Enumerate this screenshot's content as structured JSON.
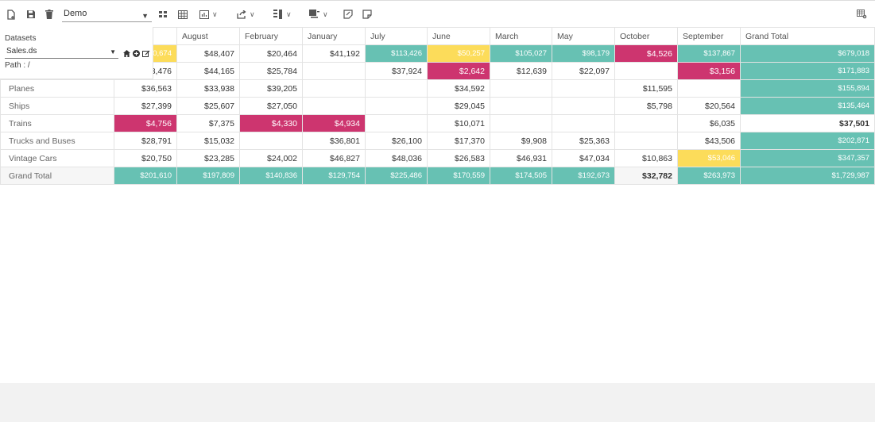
{
  "toolbar": {
    "report_name": "Demo",
    "items": [
      {
        "name": "new-report-icon"
      },
      {
        "name": "save-icon"
      },
      {
        "name": "delete-icon"
      },
      {
        "name": "grid-layout-icon"
      },
      {
        "name": "table-view-icon"
      },
      {
        "name": "chart-view-icon"
      },
      {
        "name": "export-icon"
      },
      {
        "name": "fields-icon"
      },
      {
        "name": "format-icon"
      },
      {
        "name": "edit-note-icon"
      },
      {
        "name": "note-icon"
      },
      {
        "name": "settings-grid-icon"
      }
    ]
  },
  "datasets": {
    "title": "Datasets",
    "selected": "Sales.ds",
    "path_label": "Path :",
    "path_value": "/"
  },
  "colors": {
    "teal": "#67c1b3",
    "yellow": "#fcdc5a",
    "pink": "#cd356f"
  },
  "pivot": {
    "columns": [
      "",
      "",
      "August",
      "February",
      "January",
      "July",
      "June",
      "March",
      "May",
      "October",
      "September",
      "Grand Total"
    ],
    "rows": [
      {
        "label": "",
        "cells": [
          {
            "v": "",
            "c": ""
          },
          {
            "v": "0,674",
            "c": "yellow"
          },
          {
            "v": "$48,407",
            "c": ""
          },
          {
            "v": "$20,464",
            "c": ""
          },
          {
            "v": "$41,192",
            "c": ""
          },
          {
            "v": "$113,426",
            "c": "teal"
          },
          {
            "v": "$50,257",
            "c": "yellow"
          },
          {
            "v": "$105,027",
            "c": "teal"
          },
          {
            "v": "$98,179",
            "c": "teal"
          },
          {
            "v": "$4,526",
            "c": "pink"
          },
          {
            "v": "$137,867",
            "c": "teal"
          },
          {
            "v": "$679,018",
            "c": "teal"
          }
        ]
      },
      {
        "label": "",
        "cells": [
          {
            "v": "",
            "c": ""
          },
          {
            "v": "3,476",
            "c": ""
          },
          {
            "v": "$44,165",
            "c": ""
          },
          {
            "v": "$25,784",
            "c": ""
          },
          {
            "v": "",
            "c": ""
          },
          {
            "v": "$37,924",
            "c": ""
          },
          {
            "v": "$2,642",
            "c": "pink"
          },
          {
            "v": "$12,639",
            "c": ""
          },
          {
            "v": "$22,097",
            "c": ""
          },
          {
            "v": "",
            "c": ""
          },
          {
            "v": "$3,156",
            "c": "pink"
          },
          {
            "v": "$171,883",
            "c": "teal"
          }
        ]
      },
      {
        "label": "Planes",
        "cells": [
          {
            "v": "$36,563",
            "c": ""
          },
          {
            "v": "$33,938",
            "c": ""
          },
          {
            "v": "$39,205",
            "c": ""
          },
          {
            "v": "",
            "c": ""
          },
          {
            "v": "",
            "c": ""
          },
          {
            "v": "$34,592",
            "c": ""
          },
          {
            "v": "",
            "c": ""
          },
          {
            "v": "",
            "c": ""
          },
          {
            "v": "$11,595",
            "c": ""
          },
          {
            "v": "",
            "c": ""
          },
          {
            "v": "$155,894",
            "c": "teal"
          }
        ]
      },
      {
        "label": "Ships",
        "cells": [
          {
            "v": "$27,399",
            "c": ""
          },
          {
            "v": "$25,607",
            "c": ""
          },
          {
            "v": "$27,050",
            "c": ""
          },
          {
            "v": "",
            "c": ""
          },
          {
            "v": "",
            "c": ""
          },
          {
            "v": "$29,045",
            "c": ""
          },
          {
            "v": "",
            "c": ""
          },
          {
            "v": "",
            "c": ""
          },
          {
            "v": "$5,798",
            "c": ""
          },
          {
            "v": "$20,564",
            "c": ""
          },
          {
            "v": "$135,464",
            "c": "teal"
          }
        ]
      },
      {
        "label": "Trains",
        "cells": [
          {
            "v": "$4,756",
            "c": "pink"
          },
          {
            "v": "$7,375",
            "c": ""
          },
          {
            "v": "$4,330",
            "c": "pink"
          },
          {
            "v": "$4,934",
            "c": "pink"
          },
          {
            "v": "",
            "c": ""
          },
          {
            "v": "$10,071",
            "c": ""
          },
          {
            "v": "",
            "c": ""
          },
          {
            "v": "",
            "c": ""
          },
          {
            "v": "",
            "c": ""
          },
          {
            "v": "$6,035",
            "c": ""
          },
          {
            "v": "$37,501",
            "c": "bold"
          }
        ]
      },
      {
        "label": "Trucks and Buses",
        "cells": [
          {
            "v": "$28,791",
            "c": ""
          },
          {
            "v": "$15,032",
            "c": ""
          },
          {
            "v": "",
            "c": ""
          },
          {
            "v": "$36,801",
            "c": ""
          },
          {
            "v": "$26,100",
            "c": ""
          },
          {
            "v": "$17,370",
            "c": ""
          },
          {
            "v": "$9,908",
            "c": ""
          },
          {
            "v": "$25,363",
            "c": ""
          },
          {
            "v": "",
            "c": ""
          },
          {
            "v": "$43,506",
            "c": ""
          },
          {
            "v": "$202,871",
            "c": "teal"
          }
        ]
      },
      {
        "label": "Vintage Cars",
        "cells": [
          {
            "v": "$20,750",
            "c": ""
          },
          {
            "v": "$23,285",
            "c": ""
          },
          {
            "v": "$24,002",
            "c": ""
          },
          {
            "v": "$46,827",
            "c": ""
          },
          {
            "v": "$48,036",
            "c": ""
          },
          {
            "v": "$26,583",
            "c": ""
          },
          {
            "v": "$46,931",
            "c": ""
          },
          {
            "v": "$47,034",
            "c": ""
          },
          {
            "v": "$10,863",
            "c": ""
          },
          {
            "v": "$53,046",
            "c": "yellow"
          },
          {
            "v": "$347,357",
            "c": "teal"
          }
        ]
      },
      {
        "label": "Grand Total",
        "total": true,
        "cells": [
          {
            "v": "$201,610",
            "c": "teal"
          },
          {
            "v": "$197,809",
            "c": "teal"
          },
          {
            "v": "$140,836",
            "c": "teal"
          },
          {
            "v": "$129,754",
            "c": "teal"
          },
          {
            "v": "$225,486",
            "c": "teal"
          },
          {
            "v": "$170,559",
            "c": "teal"
          },
          {
            "v": "$174,505",
            "c": "teal"
          },
          {
            "v": "$192,673",
            "c": "teal"
          },
          {
            "v": "$32,782",
            "c": "bold"
          },
          {
            "v": "$263,973",
            "c": "teal"
          },
          {
            "v": "$1,729,987",
            "c": "teal"
          }
        ]
      }
    ]
  }
}
